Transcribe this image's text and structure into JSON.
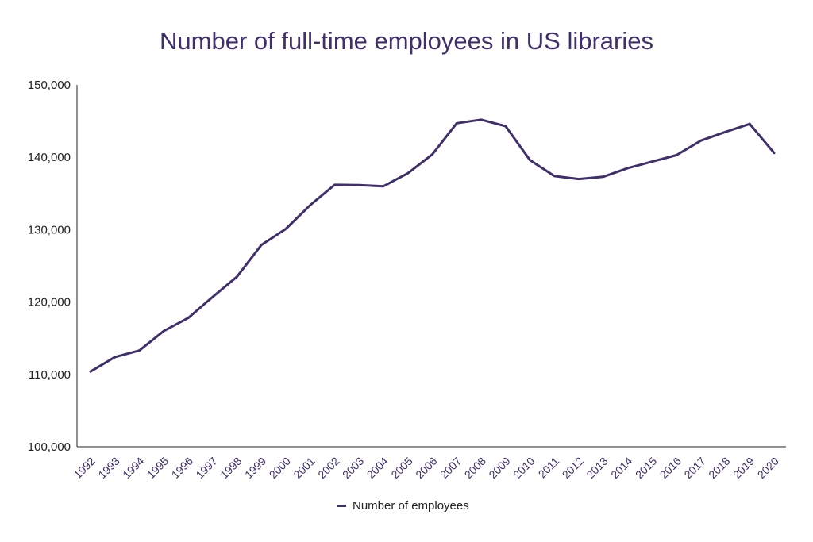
{
  "chart_data": {
    "type": "line",
    "title": "Number of full-time employees in US libraries",
    "xlabel": "",
    "ylabel": "",
    "categories": [
      "1992",
      "1993",
      "1994",
      "1995",
      "1996",
      "1997",
      "1998",
      "1999",
      "2000",
      "2001",
      "2002",
      "2003",
      "2004",
      "2005",
      "2006",
      "2007",
      "2008",
      "2009",
      "2010",
      "2011",
      "2012",
      "2013",
      "2014",
      "2015",
      "2016",
      "2017",
      "2018",
      "2019",
      "2020"
    ],
    "series": [
      {
        "name": "Number of employees",
        "color": "#3f2f6b",
        "values": [
          110400,
          112400,
          113300,
          116000,
          117800,
          120700,
          123500,
          127900,
          130100,
          133400,
          136200,
          136150,
          136000,
          137800,
          140400,
          144700,
          145200,
          144300,
          139600,
          137400,
          137000,
          137300,
          138500,
          139400,
          140300,
          142300,
          143500,
          144600,
          140600
        ]
      }
    ],
    "ylim": [
      100000,
      150000
    ],
    "yticks": [
      "100,000",
      "110,000",
      "120,000",
      "130,000",
      "140,000",
      "150,000"
    ],
    "ytick_values": [
      100000,
      110000,
      120000,
      130000,
      140000,
      150000
    ],
    "grid": false,
    "legend": "bottom-center"
  }
}
